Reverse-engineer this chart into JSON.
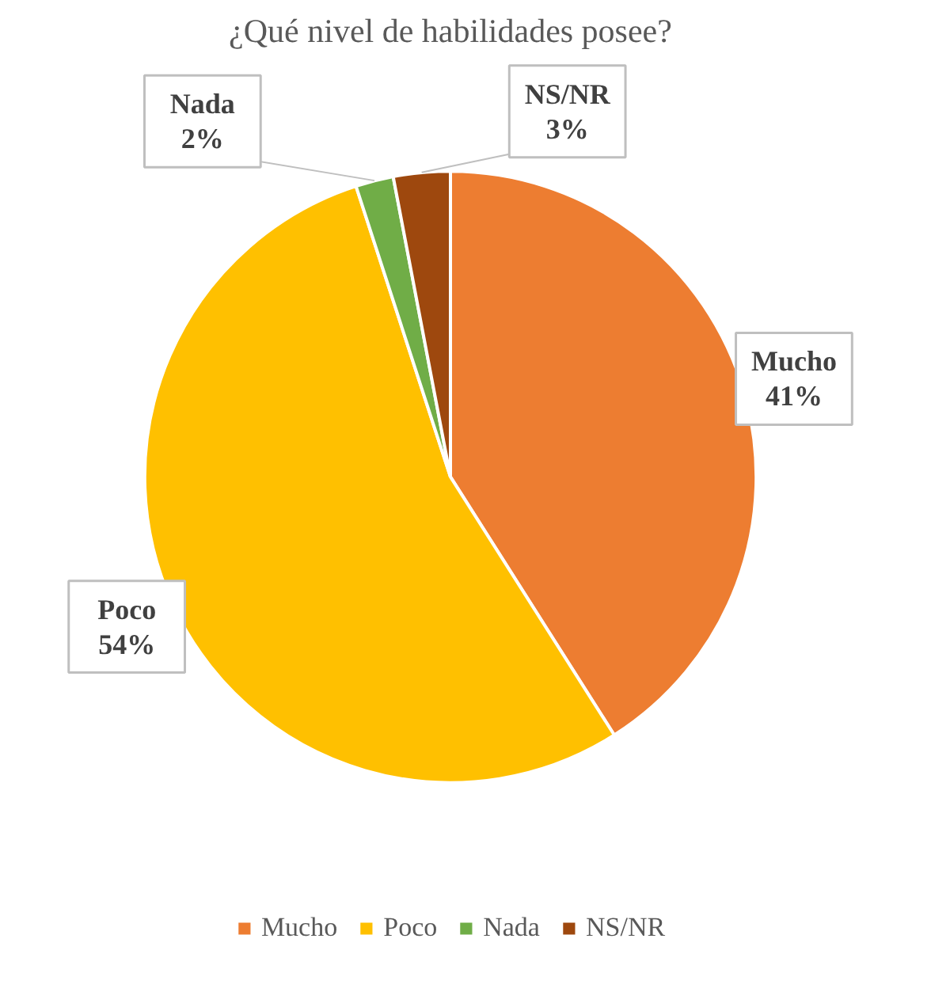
{
  "chart_data": {
    "type": "pie",
    "title": "¿Qué nivel de habilidades posee?",
    "categories": [
      "Mucho",
      "Poco",
      "Nada",
      "NS/NR"
    ],
    "values": [
      41,
      54,
      2,
      3
    ],
    "colors": [
      "#ed7d31",
      "#ffc000",
      "#70ad47",
      "#9e480e"
    ],
    "value_labels": [
      "41%",
      "54%",
      "2%",
      "3%"
    ],
    "legend": "bottom"
  }
}
